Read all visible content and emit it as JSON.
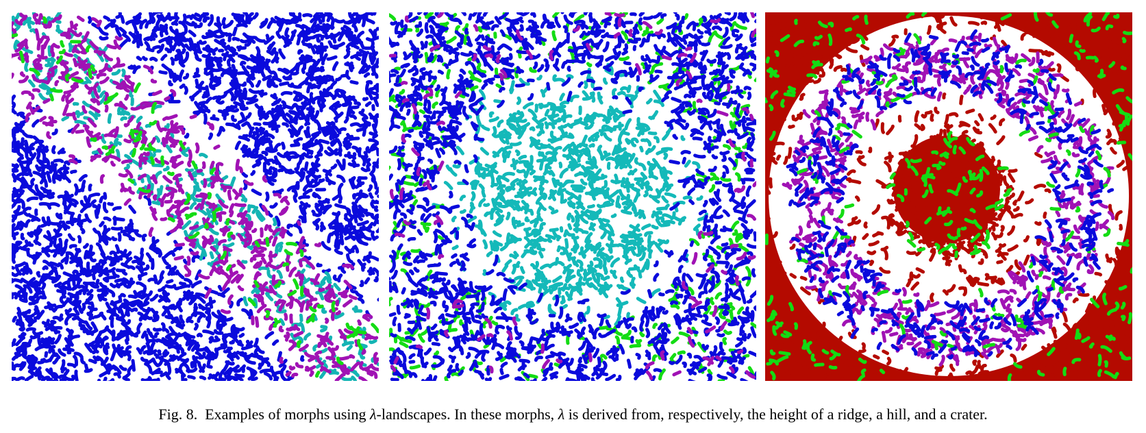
{
  "figure": {
    "label": "Fig. 8.",
    "caption_part1": "Examples of morphs using ",
    "lambda_symbol": "λ",
    "caption_part2": "-landscapes. In these morphs, ",
    "caption_part3": " is derived from, respectively, the height of a ridge, a hill, and a crater."
  },
  "panels": [
    {
      "id": "ridge",
      "landscape": "ridge",
      "colors": {
        "background": "#ffffff",
        "base": "#0a0adc",
        "ridge_primary": "#a012b4",
        "ridge_secondary": "#14b4b4",
        "accent": "#14dc14"
      }
    },
    {
      "id": "hill",
      "landscape": "hill",
      "colors": {
        "background": "#ffffff",
        "outer": "#0a0adc",
        "accent": "#14dc14",
        "center": "#14b9b9",
        "sparse": "#a012b4"
      }
    },
    {
      "id": "crater",
      "landscape": "crater",
      "colors": {
        "background": "#ffffff",
        "outer": "#b40a00",
        "accent": "#14dc14",
        "ring_primary": "#a012b4",
        "ring_secondary": "#0a0adc",
        "center": "#b40a00"
      }
    }
  ]
}
